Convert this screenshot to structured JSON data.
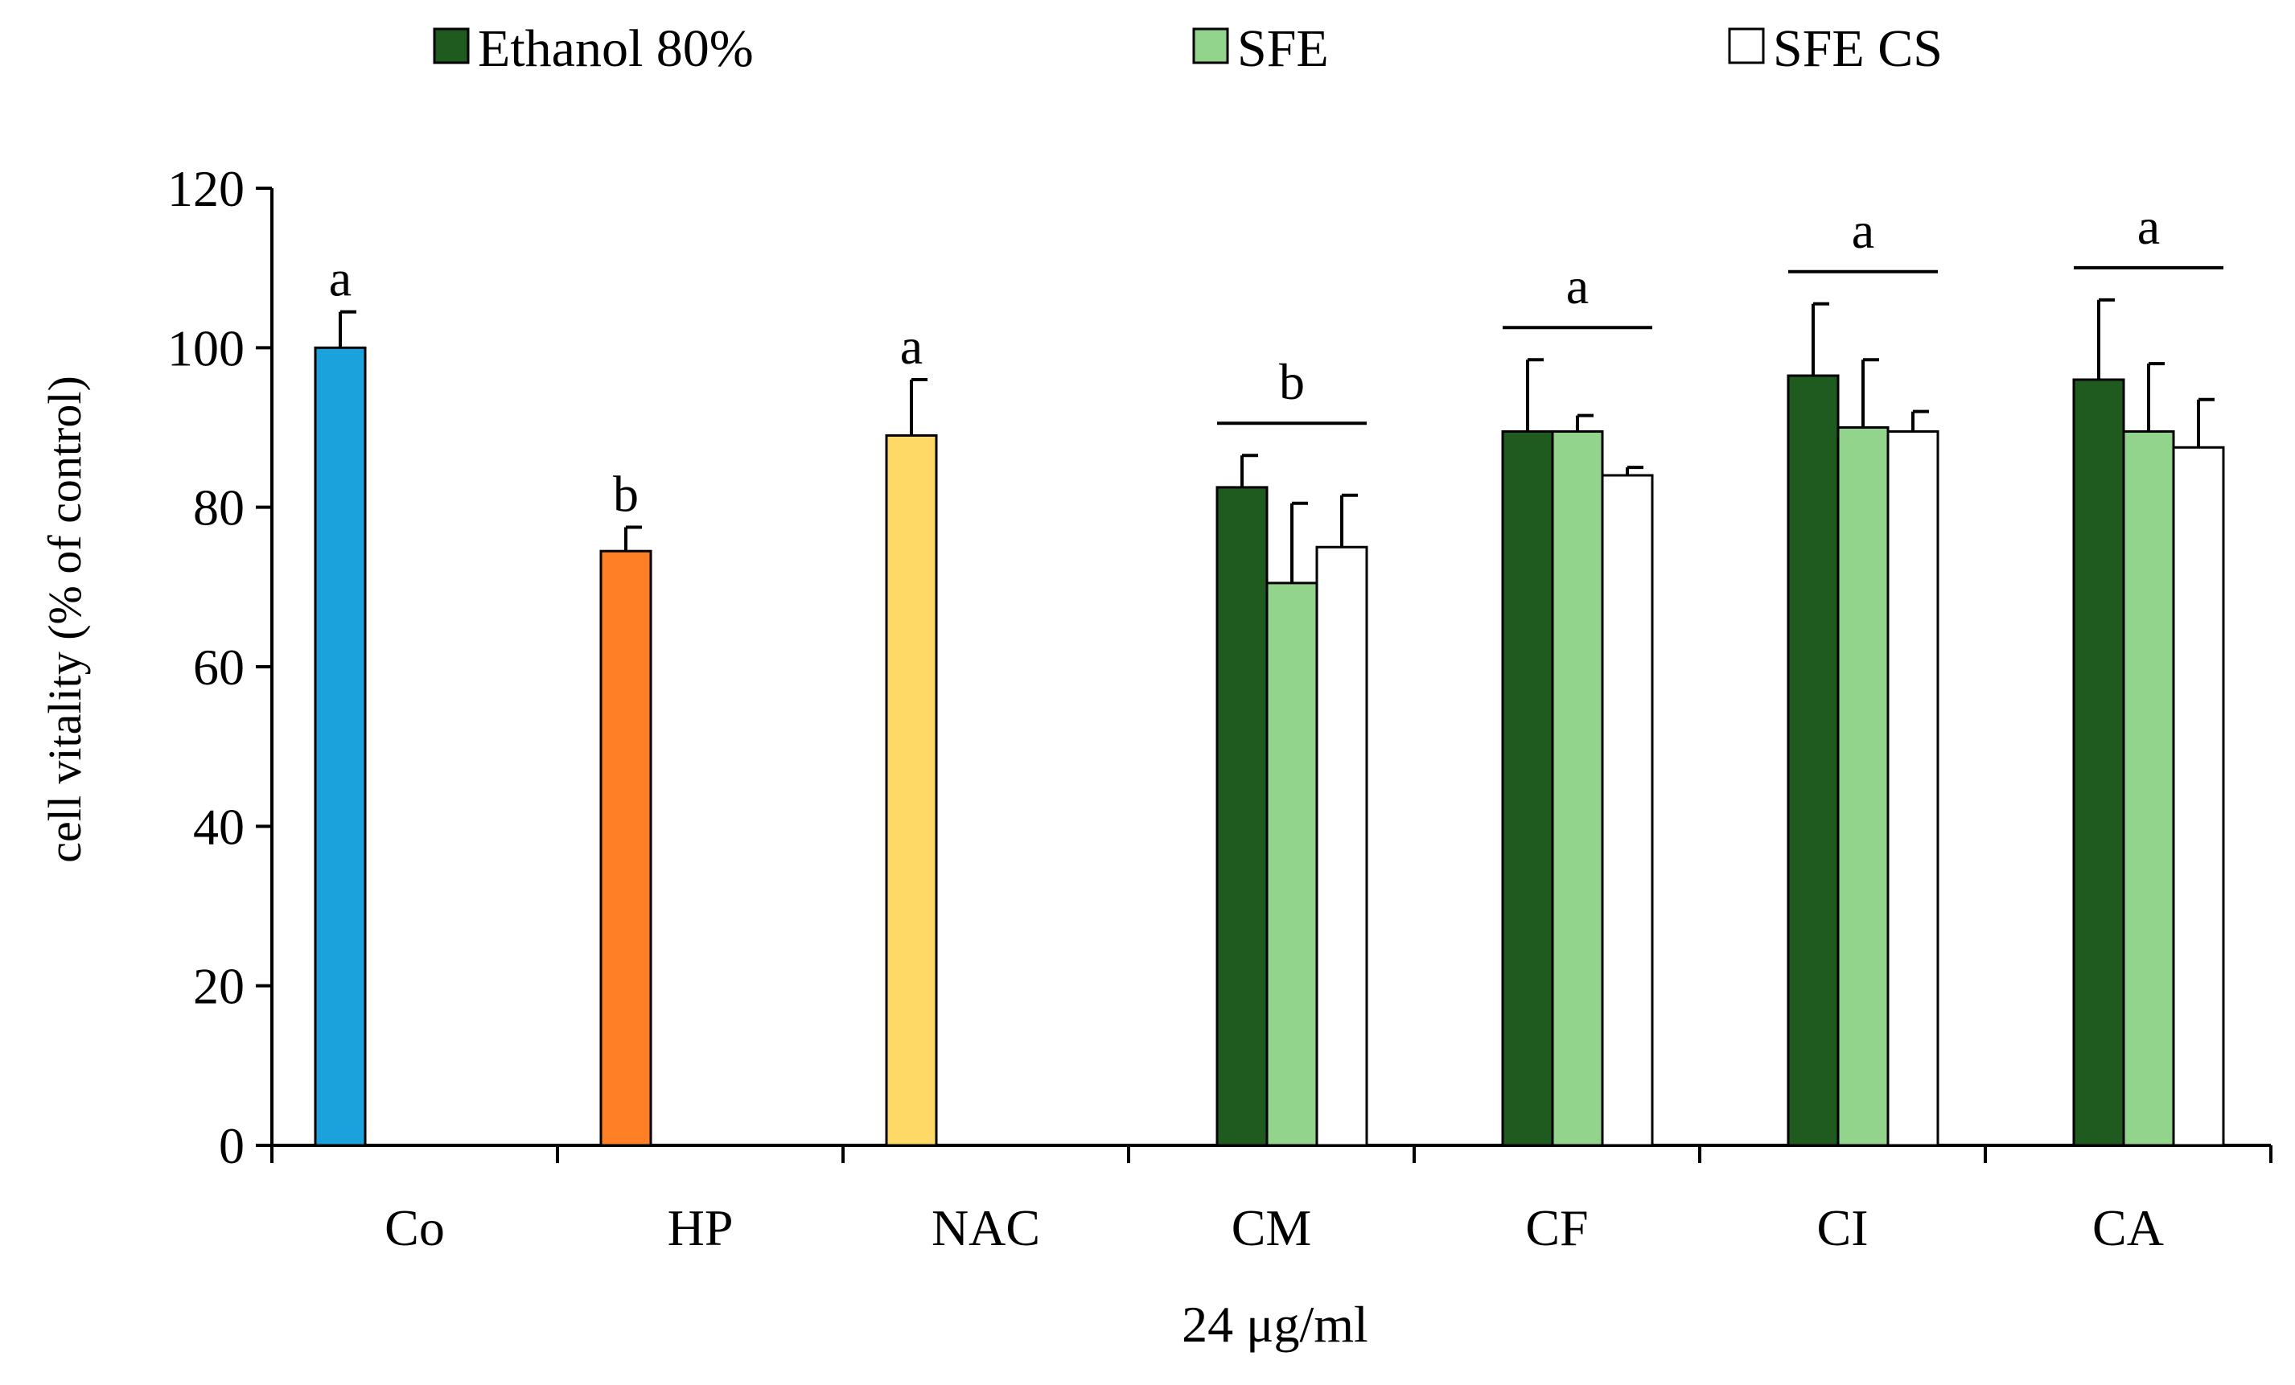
{
  "chart_data": {
    "type": "bar",
    "xlabel": "24 μg/ml",
    "ylabel": "cell vitality (% of control)",
    "ylim": [
      0,
      120
    ],
    "yticks": [
      0,
      20,
      40,
      60,
      80,
      100,
      120
    ],
    "legend_position": "top",
    "legend": [
      {
        "label": "Ethanol 80%",
        "color": "#1f5a1f"
      },
      {
        "label": "SFE",
        "color": "#93d48c"
      },
      {
        "label": "SFE CS",
        "color": "#ffffff"
      }
    ],
    "categories": [
      "Co",
      "HP",
      "NAC",
      "CM",
      "CF",
      "CI",
      "CA"
    ],
    "single_bars": [
      {
        "category": "Co",
        "value": 100,
        "error": 4.5,
        "color": "#1ba1dc",
        "letter": "a"
      },
      {
        "category": "HP",
        "value": 74.5,
        "error": 3,
        "color": "#ff7f27",
        "letter": "b"
      },
      {
        "category": "NAC",
        "value": 89,
        "error": 7,
        "color": "#ffd966",
        "letter": "a"
      }
    ],
    "grouped": {
      "categories": [
        "CM",
        "CF",
        "CI",
        "CA"
      ],
      "letters": [
        "b",
        "a",
        "a",
        "a"
      ],
      "series": [
        {
          "name": "Ethanol 80%",
          "values": [
            82.5,
            89.5,
            96.5,
            96
          ],
          "errors": [
            4,
            9,
            9,
            10
          ]
        },
        {
          "name": "SFE",
          "values": [
            70.5,
            89.5,
            90,
            89.5
          ],
          "errors": [
            10,
            2,
            8.5,
            8.5
          ]
        },
        {
          "name": "SFE CS",
          "values": [
            75,
            84,
            89.5,
            87.5
          ],
          "errors": [
            6.5,
            1,
            2.5,
            6
          ]
        }
      ]
    }
  }
}
